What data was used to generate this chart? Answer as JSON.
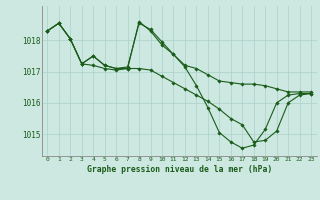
{
  "title": "Graphe pression niveau de la mer (hPa)",
  "bg_color": "#cce8e0",
  "line_color": "#1a5c1a",
  "grid_color": "#b0d4cc",
  "xlim": [
    -0.5,
    23.5
  ],
  "ylim": [
    1014.3,
    1019.1
  ],
  "yticks": [
    1015,
    1016,
    1017,
    1018
  ],
  "xticks": [
    0,
    1,
    2,
    3,
    4,
    5,
    6,
    7,
    8,
    9,
    10,
    11,
    12,
    13,
    14,
    15,
    16,
    17,
    18,
    19,
    20,
    21,
    22,
    23
  ],
  "series": [
    [
      1018.3,
      1018.55,
      1018.05,
      1017.25,
      1017.5,
      1017.2,
      1017.1,
      1017.15,
      1018.55,
      1018.35,
      1017.95,
      1017.55,
      1017.2,
      1017.1,
      1016.9,
      1016.7,
      1016.65,
      1016.6,
      1016.6,
      1016.55,
      1016.45,
      1016.35,
      1016.35,
      1016.35
    ],
    [
      1018.3,
      1018.55,
      1018.05,
      1017.25,
      1017.2,
      1017.1,
      1017.05,
      1017.1,
      1018.6,
      1018.3,
      1017.85,
      1017.55,
      1017.15,
      1016.55,
      1015.85,
      1015.05,
      1014.75,
      1014.55,
      1014.65,
      1015.15,
      1016.0,
      1016.25,
      1016.3,
      1016.3
    ],
    [
      1018.3,
      1018.55,
      1018.05,
      1017.25,
      1017.5,
      1017.2,
      1017.1,
      1017.1,
      1017.1,
      1017.05,
      1016.85,
      1016.65,
      1016.45,
      1016.25,
      1016.05,
      1015.8,
      1015.5,
      1015.3,
      1014.75,
      1014.8,
      1015.1,
      1016.0,
      1016.25,
      1016.3
    ]
  ]
}
